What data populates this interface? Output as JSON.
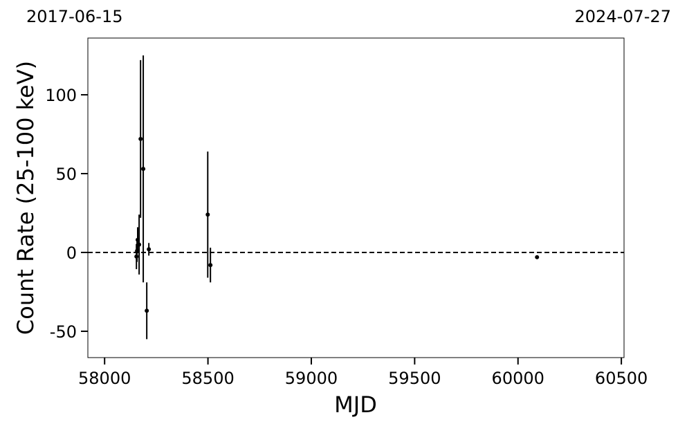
{
  "chart_data": {
    "type": "errorbar",
    "xlabel": "MJD",
    "ylabel": "Count Rate (25-100 keV)",
    "annotations": [
      "2017-06-15",
      "2024-07-27"
    ],
    "x": [
      58154,
      58157,
      58160,
      58167,
      58174,
      58187,
      58204,
      58214,
      58499,
      58512,
      60092
    ],
    "values": [
      -2.6,
      1,
      8,
      5,
      72,
      53,
      -37,
      2,
      24,
      -8,
      -3
    ],
    "errors": [
      8,
      7,
      8,
      19,
      50,
      72,
      18,
      4,
      40,
      11,
      1
    ],
    "color": "#000000",
    "hline": 0,
    "xlim": [
      57919,
      60513
    ],
    "xticks": [
      58000,
      58500,
      59000,
      59500,
      60000,
      60500
    ],
    "ylim": [
      -66.7,
      136
    ],
    "yticks": [
      -50,
      0,
      50,
      100
    ]
  }
}
